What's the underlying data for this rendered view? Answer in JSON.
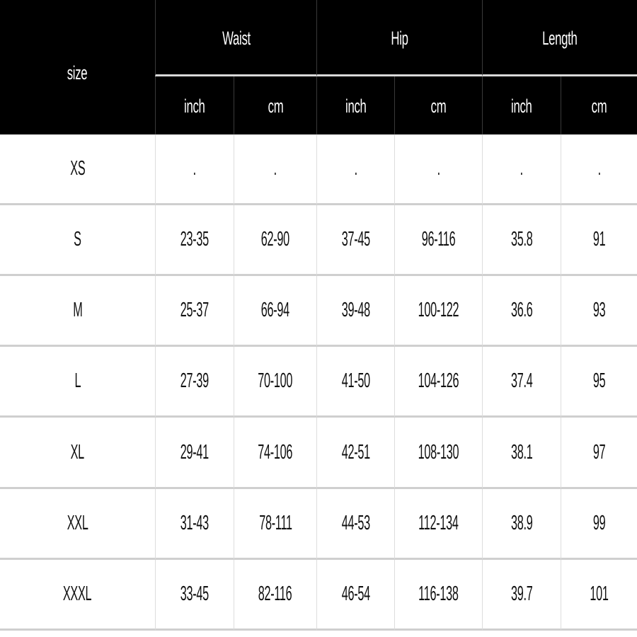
{
  "table": {
    "size_header": "size",
    "groups": [
      "Waist",
      "Hip",
      "Length"
    ],
    "units": [
      "inch",
      "cm",
      "inch",
      "cm",
      "inch",
      "cm"
    ],
    "rows": [
      {
        "size": "XS",
        "values": [
          ".",
          ".",
          ".",
          ".",
          ".",
          "."
        ]
      },
      {
        "size": "S",
        "values": [
          "23-35",
          "62-90",
          "37-45",
          "96-116",
          "35.8",
          "91"
        ]
      },
      {
        "size": "M",
        "values": [
          "25-37",
          "66-94",
          "39-48",
          "100-122",
          "36.6",
          "93"
        ]
      },
      {
        "size": "L",
        "values": [
          "27-39",
          "70-100",
          "41-50",
          "104-126",
          "37.4",
          "95"
        ]
      },
      {
        "size": "XL",
        "values": [
          "29-41",
          "74-106",
          "42-51",
          "108-130",
          "38.1",
          "97"
        ]
      },
      {
        "size": "XXL",
        "values": [
          "31-43",
          "78-111",
          "44-53",
          "112-134",
          "38.9",
          "99"
        ]
      },
      {
        "size": "XXXL",
        "values": [
          "33-45",
          "82-116",
          "46-54",
          "116-138",
          "39.7",
          "101"
        ]
      }
    ]
  },
  "colors": {
    "header_background": "#000000",
    "header_text": "#ffffff",
    "body_background": "#ffffff",
    "body_text": "#111111",
    "row_separator": "#cfcfcf"
  }
}
